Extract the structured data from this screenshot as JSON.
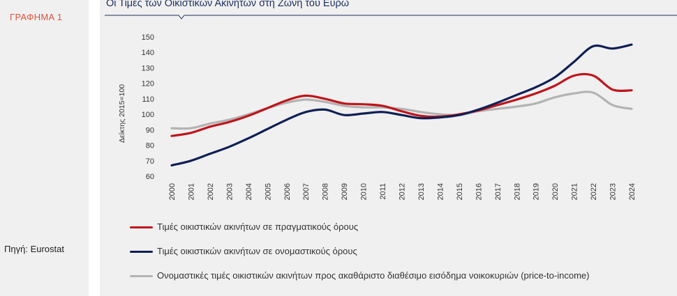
{
  "figure_label": "ΓΡΑΦΗΜΑ 1",
  "source": "Πηγή: Eurostat",
  "colors": {
    "accent_label": "#e0503c",
    "title": "#1b2e5e",
    "panel_bg": "#f0f0f0"
  },
  "chart_data": {
    "type": "line",
    "title": "Οι Τιμές των Οικιστικών Ακινήτων στη Ζώνη του Ευρώ",
    "ylabel": "Δείκτης 2015=100",
    "xlabel": "",
    "ylim": [
      60,
      150
    ],
    "yticks": [
      60,
      70,
      80,
      90,
      100,
      110,
      120,
      130,
      140,
      150
    ],
    "grid": false,
    "legend_position": "bottom",
    "x": [
      "2000",
      "2001",
      "2002",
      "2003",
      "2004",
      "2005",
      "2006",
      "2007",
      "2008",
      "2009",
      "2010",
      "2011",
      "2012",
      "2013",
      "2014",
      "2015",
      "2016",
      "2017",
      "2018",
      "2019",
      "2020",
      "2021",
      "2022",
      "2023",
      "2024"
    ],
    "series": [
      {
        "name": "Τιμές οικιστικών ακινήτων σε πραγματικούς όρους",
        "color": "#c0141b",
        "values": [
          86,
          88,
          92,
          95,
          99,
          104,
          109,
          112,
          110,
          107,
          106.5,
          105.5,
          102,
          99,
          98.5,
          100,
          102.5,
          106,
          109.5,
          113.5,
          118.5,
          125,
          125,
          116,
          115.5
        ]
      },
      {
        "name": "Τιμές οικιστικών ακινήτων σε ονομαστικούς όρους",
        "color": "#0f1f55",
        "values": [
          67,
          70,
          74.5,
          79,
          84.5,
          90.5,
          96.5,
          101.5,
          103,
          99.5,
          100.5,
          101.5,
          99.5,
          97.5,
          98,
          99.5,
          103,
          107.5,
          112.5,
          117.5,
          124,
          134,
          144,
          142.5,
          145
        ]
      },
      {
        "name": "Ονομαστικές τιμές οικιστικών ακινήτων προς ακαθάριστο διαθέσιμο εισόδημα νοικοκυριών (price-to-income)",
        "color": "#b3b3b3",
        "values": [
          91,
          91,
          94,
          96.5,
          100,
          104,
          107.5,
          109.5,
          108,
          105.5,
          104.5,
          104.5,
          103.5,
          101.5,
          100,
          99.5,
          102,
          103.5,
          105,
          107,
          111,
          113.5,
          114,
          106,
          103.5
        ]
      }
    ]
  }
}
